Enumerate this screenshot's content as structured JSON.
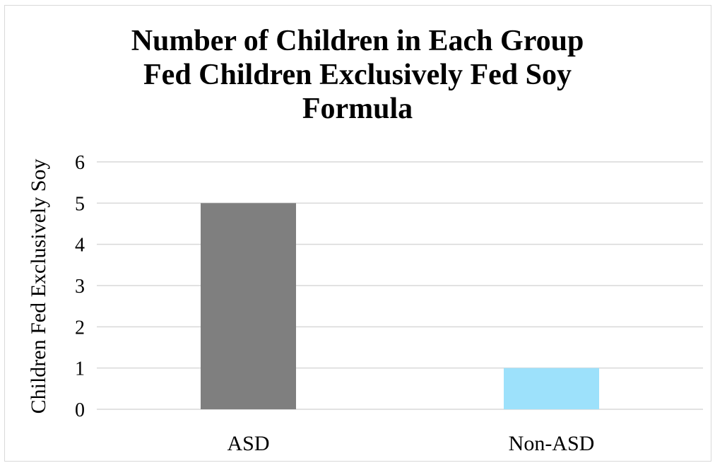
{
  "chart_data": {
    "type": "bar",
    "title_lines": [
      "Number of Children in Each Group",
      "Fed Children Exclusively Fed Soy",
      "Formula"
    ],
    "ylabel": "Children Fed Exclusively Soy",
    "xlabel": "",
    "categories": [
      "ASD",
      "Non-ASD"
    ],
    "values": [
      5,
      1
    ],
    "bar_colors": [
      "#7f7f7f",
      "#9de1fb"
    ],
    "ylim": [
      0,
      6
    ],
    "yticks": [
      0,
      1,
      2,
      3,
      4,
      5,
      6
    ],
    "grid": true,
    "legend": "none"
  }
}
